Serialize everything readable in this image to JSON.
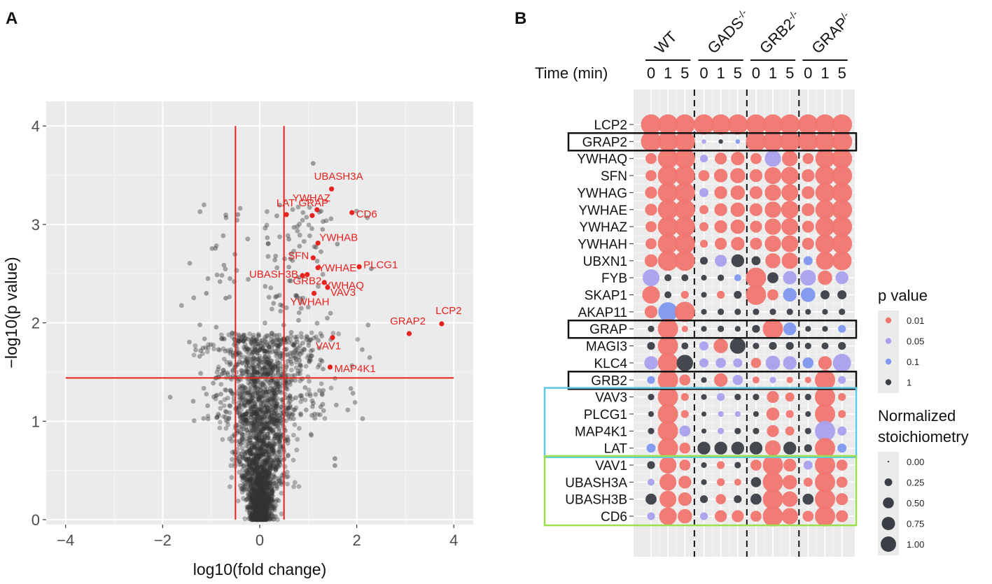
{
  "chart_data": [
    {
      "panel": "A",
      "type": "scatter",
      "title": "",
      "xlabel": "log10(fold change)",
      "ylabel": "−log10(p value)",
      "xlim": [
        -4.4,
        4.4
      ],
      "ylim": [
        -0.05,
        4.25
      ],
      "xticks": [
        -4,
        -2,
        0,
        2,
        4
      ],
      "xtick_labels": [
        "−4",
        "−2",
        "0",
        "2",
        "4"
      ],
      "yticks": [
        0,
        1,
        2,
        3,
        4
      ],
      "ytick_labels": [
        "0",
        "1",
        "2",
        "3",
        "4"
      ],
      "thresholds": {
        "x": [
          -0.5,
          0.5
        ],
        "y": 1.44
      },
      "threshold_line_extent_x": [
        -4,
        4
      ],
      "threshold_line_extent_y": [
        0,
        4
      ],
      "highlight_color": "#e8221f",
      "point_color": "#333333",
      "highlighted": [
        {
          "name": "LCP2",
          "x": 3.75,
          "y": 1.99,
          "label_anchor": "center"
        },
        {
          "name": "GRAP2",
          "x": 3.08,
          "y": 1.89,
          "label_anchor": "center"
        },
        {
          "name": "UBASH3A",
          "x": 1.48,
          "y": 3.36,
          "label_anchor": "center"
        },
        {
          "name": "LAT",
          "x": 0.55,
          "y": 3.1,
          "label_anchor": "center"
        },
        {
          "name": "YWHAZ",
          "x": 1.18,
          "y": 3.15,
          "label_anchor": "center"
        },
        {
          "name": "CD6",
          "x": 1.9,
          "y": 3.12,
          "label_anchor": "start"
        },
        {
          "name": "GRAP",
          "x": 1.08,
          "y": 3.09,
          "label_anchor": "center"
        },
        {
          "name": "YWHAB",
          "x": 1.2,
          "y": 2.81,
          "label_anchor": "start"
        },
        {
          "name": "SFN",
          "x": 1.1,
          "y": 2.66,
          "label_anchor": "end"
        },
        {
          "name": "YWHAE",
          "x": 1.2,
          "y": 2.56,
          "label_anchor": "start"
        },
        {
          "name": "PLCG1",
          "x": 2.05,
          "y": 2.57,
          "label_anchor": "start"
        },
        {
          "name": "UBASH3B",
          "x": 0.88,
          "y": 2.48,
          "label_anchor": "end"
        },
        {
          "name": "GRB2",
          "x": 0.98,
          "y": 2.49,
          "label_anchor": "center"
        },
        {
          "name": "YWHAQ",
          "x": 1.33,
          "y": 2.41,
          "label_anchor": "start"
        },
        {
          "name": "VAV3",
          "x": 1.4,
          "y": 2.36,
          "label_anchor": "start"
        },
        {
          "name": "YWHAH",
          "x": 1.12,
          "y": 2.3,
          "label_anchor": "center"
        },
        {
          "name": "VAV1",
          "x": 1.5,
          "y": 1.85,
          "label_anchor": "center"
        },
        {
          "name": "MAP4K1",
          "x": 1.45,
          "y": 1.55,
          "label_anchor": "start"
        }
      ],
      "background_points_note": "approximately 4000 grey proteins, dense near x=0"
    },
    {
      "panel": "B",
      "type": "dot-matrix",
      "time_label": "Time (min)",
      "genotypes": [
        "WT",
        "GADS",
        "GRB2",
        "GRAP"
      ],
      "genotype_superscripts": [
        "",
        "-/-",
        "-/-",
        "/-"
      ],
      "timepoints": [
        "0",
        "1",
        "5"
      ],
      "genes": [
        "LCP2",
        "GRAP2",
        "YWHAQ",
        "SFN",
        "YWHAG",
        "YWHAE",
        "YWHAZ",
        "YWHAH",
        "UBXN1",
        "FYB",
        "SKAP1",
        "AKAP11",
        "GRAP",
        "MAGI3",
        "KLC4",
        "GRB2",
        "VAV3",
        "PLCG1",
        "MAP4K1",
        "LAT",
        "VAV1",
        "UBASH3A",
        "UBASH3B",
        "CD6"
      ],
      "boxed_genes": [
        "GRAP2",
        "GRAP",
        "GRB2"
      ],
      "group_boxes": [
        {
          "genes": [
            "VAV3",
            "PLCG1",
            "MAP4K1",
            "LAT"
          ],
          "color": "#5bc8e8"
        },
        {
          "genes": [
            "VAV1",
            "UBASH3A",
            "UBASH3B",
            "CD6"
          ],
          "color": "#9be04a"
        }
      ],
      "columns": [
        "WT 0",
        "WT 1",
        "WT 5",
        "GADS 0",
        "GADS 1",
        "GADS 5",
        "GRB2 0",
        "GRB2 1",
        "GRB2 5",
        "GRAP 0",
        "GRAP 1",
        "GRAP 5"
      ],
      "pvalue_categories": [
        "0.01",
        "0.05",
        "0.1",
        "1"
      ],
      "pvalue_colors": {
        "0.01": "#f0766f",
        "0.05": "#a9a1ee",
        "0.1": "#7f97f0",
        "1": "#3a3f47"
      },
      "size_levels": [
        "0.00",
        "0.25",
        "0.50",
        "0.75",
        "1.00"
      ],
      "size_values": [
        0,
        0.25,
        0.5,
        0.75,
        1.0
      ],
      "legend_title_p": "p value",
      "legend_title_size": [
        "Normalized",
        "stoichiometry"
      ],
      "size_matrix": [
        [
          1,
          1,
          1,
          1,
          1,
          1,
          1,
          1,
          1,
          1,
          1,
          1
        ],
        [
          1,
          1,
          1,
          0.05,
          0.05,
          0.05,
          1,
          1,
          1,
          1,
          1,
          1
        ],
        [
          0.3,
          1,
          1,
          0.15,
          0.35,
          0.45,
          0.3,
          0.65,
          0.6,
          0.3,
          0.9,
          1
        ],
        [
          0.3,
          1,
          1,
          0.3,
          0.45,
          0.55,
          0.4,
          0.7,
          0.75,
          0.4,
          0.95,
          1
        ],
        [
          0.35,
          1,
          1,
          0.2,
          0.4,
          0.5,
          0.4,
          0.65,
          0.7,
          0.4,
          0.9,
          1
        ],
        [
          0.35,
          1,
          1,
          0.2,
          0.4,
          0.5,
          0.4,
          0.65,
          0.75,
          0.4,
          0.9,
          1
        ],
        [
          0.3,
          1,
          1,
          0.2,
          0.4,
          0.5,
          0.35,
          0.65,
          0.7,
          0.35,
          0.9,
          1
        ],
        [
          0.3,
          1,
          1,
          0.15,
          0.35,
          0.45,
          0.35,
          0.65,
          0.7,
          0.35,
          0.9,
          1
        ],
        [
          0.4,
          1,
          1,
          0.15,
          0.35,
          0.4,
          0.2,
          0.55,
          0.65,
          0.2,
          0.8,
          0.9
        ],
        [
          0.7,
          0.12,
          0.12,
          0.08,
          0.1,
          0.12,
          1,
          0.3,
          0.45,
          0.6,
          0.5,
          0.4
        ],
        [
          0.75,
          0.12,
          0.15,
          0.08,
          0.15,
          0.15,
          1,
          0.3,
          0.45,
          0.5,
          0.2,
          0.2
        ],
        [
          0.4,
          0.9,
          1,
          0.08,
          0.1,
          0.1,
          0.1,
          0.1,
          0.1,
          0.08,
          0.08,
          0.1
        ],
        [
          0.1,
          1,
          0.1,
          0.08,
          0.1,
          0.08,
          0.15,
          1,
          0.4,
          0.08,
          0.08,
          0.15
        ],
        [
          0.15,
          1,
          0.12,
          0.2,
          0.5,
          0.6,
          0.1,
          0.15,
          0.15,
          0.1,
          0.12,
          0.15
        ],
        [
          0.45,
          1,
          0.65,
          0.2,
          0.25,
          0.2,
          0.25,
          0.5,
          0.45,
          0.3,
          0.45,
          0.8
        ],
        [
          0.15,
          1,
          0.3,
          0.08,
          0.45,
          0.25,
          0.12,
          0.1,
          0.1,
          0.1,
          1,
          0.15
        ],
        [
          0.1,
          1,
          0.15,
          0.08,
          0.15,
          0.1,
          0.1,
          0.35,
          0.2,
          0.1,
          1,
          0.15
        ],
        [
          0.08,
          1,
          0.15,
          0.06,
          0.08,
          0.08,
          0.08,
          0.4,
          0.15,
          0.08,
          1,
          0.15
        ],
        [
          0.1,
          1,
          0.3,
          0.06,
          0.1,
          0.1,
          0.1,
          0.35,
          0.2,
          0.1,
          1,
          0.2
        ],
        [
          0.2,
          1,
          0.3,
          0.4,
          0.4,
          0.4,
          0.4,
          0.6,
          0.4,
          0.15,
          1,
          0.2
        ],
        [
          0.15,
          0.7,
          0.3,
          0.08,
          0.15,
          0.1,
          0.3,
          1,
          0.4,
          0.2,
          1,
          0.3
        ],
        [
          0.12,
          0.7,
          0.4,
          0.08,
          0.15,
          0.12,
          0.25,
          1,
          0.5,
          0.2,
          1,
          0.3
        ],
        [
          0.3,
          0.7,
          0.45,
          0.15,
          0.25,
          0.15,
          0.3,
          1,
          0.6,
          0.3,
          1,
          0.35
        ],
        [
          0.15,
          0.75,
          0.5,
          0.15,
          0.35,
          0.35,
          0.3,
          1,
          0.65,
          0.3,
          1,
          0.35
        ]
      ],
      "pvalue_matrix": [
        [
          "0.01",
          "0.01",
          "0.01",
          "0.01",
          "0.01",
          "0.01",
          "0.01",
          "0.01",
          "0.01",
          "0.01",
          "0.01",
          "0.01"
        ],
        [
          "0.01",
          "0.01",
          "0.01",
          "0.05",
          "1",
          "0.1",
          "0.01",
          "0.01",
          "0.01",
          "0.01",
          "0.01",
          "0.01"
        ],
        [
          "0.01",
          "0.01",
          "0.01",
          "0.05",
          "0.01",
          "0.01",
          "0.01",
          "0.05",
          "0.01",
          "0.01",
          "0.01",
          "0.01"
        ],
        [
          "0.01",
          "0.01",
          "0.01",
          "0.01",
          "0.01",
          "0.01",
          "0.01",
          "0.01",
          "0.01",
          "0.01",
          "0.01",
          "0.01"
        ],
        [
          "0.01",
          "0.01",
          "0.01",
          "0.05",
          "0.01",
          "0.01",
          "0.01",
          "0.01",
          "0.01",
          "0.01",
          "0.01",
          "0.01"
        ],
        [
          "0.01",
          "0.01",
          "0.01",
          "0.01",
          "0.01",
          "0.01",
          "0.01",
          "0.01",
          "0.01",
          "0.01",
          "0.01",
          "0.01"
        ],
        [
          "0.01",
          "0.01",
          "0.01",
          "0.01",
          "0.01",
          "0.01",
          "0.01",
          "0.01",
          "0.01",
          "0.01",
          "0.01",
          "0.01"
        ],
        [
          "0.01",
          "0.01",
          "0.01",
          "0.01",
          "0.01",
          "0.01",
          "0.01",
          "0.01",
          "0.01",
          "0.01",
          "0.01",
          "0.01"
        ],
        [
          "0.01",
          "0.01",
          "0.01",
          "1",
          "0.05",
          "1",
          "1",
          "0.01",
          "0.01",
          "0.1",
          "0.01",
          "0.01"
        ],
        [
          "0.05",
          "1",
          "1",
          "1",
          "1",
          "0.1",
          "0.01",
          "1",
          "0.05",
          "0.05",
          "0.01",
          "0.05"
        ],
        [
          "0.01",
          "1",
          "0.01",
          "1",
          "0.01",
          "1",
          "0.01",
          "0.01",
          "0.1",
          "0.1",
          "1",
          "1"
        ],
        [
          "0.01",
          "0.1",
          "0.01",
          "1",
          "1",
          "1",
          "1",
          "1",
          "1",
          "1",
          "1",
          "1"
        ],
        [
          "1",
          "0.01",
          "0.01",
          "1",
          "1",
          "1",
          "1",
          "0.01",
          "0.1",
          "1",
          "1",
          "0.1"
        ],
        [
          "1",
          "0.01",
          "1",
          "0.05",
          "0.01",
          "1",
          "1",
          "1",
          "1",
          "1",
          "1",
          "1"
        ],
        [
          "0.05",
          "0.01",
          "1",
          "0.05",
          "0.05",
          "0.05",
          "0.01",
          "0.05",
          "0.05",
          "0.1",
          "0.01",
          "0.05"
        ],
        [
          "0.1",
          "0.01",
          "0.01",
          "1",
          "0.01",
          "0.05",
          "0.01",
          "0.05",
          "0.01",
          "0.01",
          "0.01",
          "0.05"
        ],
        [
          "1",
          "0.01",
          "0.01",
          "1",
          "0.05",
          "1",
          "1",
          "0.01",
          "0.01",
          "1",
          "0.01",
          "0.01"
        ],
        [
          "1",
          "0.01",
          "0.01",
          "1",
          "0.05",
          "0.05",
          "1",
          "0.01",
          "0.01",
          "1",
          "0.01",
          "0.01"
        ],
        [
          "1",
          "0.01",
          "0.05",
          "1",
          "0.05",
          "1",
          "1",
          "0.01",
          "0.01",
          "1",
          "0.05",
          "0.05"
        ],
        [
          "0.1",
          "0.01",
          "0.01",
          "1",
          "1",
          "1",
          "1",
          "0.01",
          "1",
          "1",
          "0.01",
          "0.1"
        ],
        [
          "1",
          "0.01",
          "0.01",
          "1",
          "0.01",
          "1",
          "0.01",
          "0.01",
          "0.01",
          "0.05",
          "0.01",
          "0.01"
        ],
        [
          "0.05",
          "0.01",
          "0.01",
          "1",
          "0.01",
          "0.01",
          "1",
          "0.01",
          "0.01",
          "0.01",
          "0.01",
          "0.01"
        ],
        [
          "1",
          "0.01",
          "0.01",
          "1",
          "0.01",
          "1",
          "1",
          "0.01",
          "0.01",
          "1",
          "0.01",
          "0.01"
        ],
        [
          "0.05",
          "0.01",
          "0.01",
          "0.05",
          "0.01",
          "0.01",
          "0.01",
          "0.01",
          "0.01",
          "0.01",
          "0.01",
          "0.01"
        ]
      ]
    }
  ],
  "panel_labels": {
    "a": "A",
    "b": "B"
  }
}
